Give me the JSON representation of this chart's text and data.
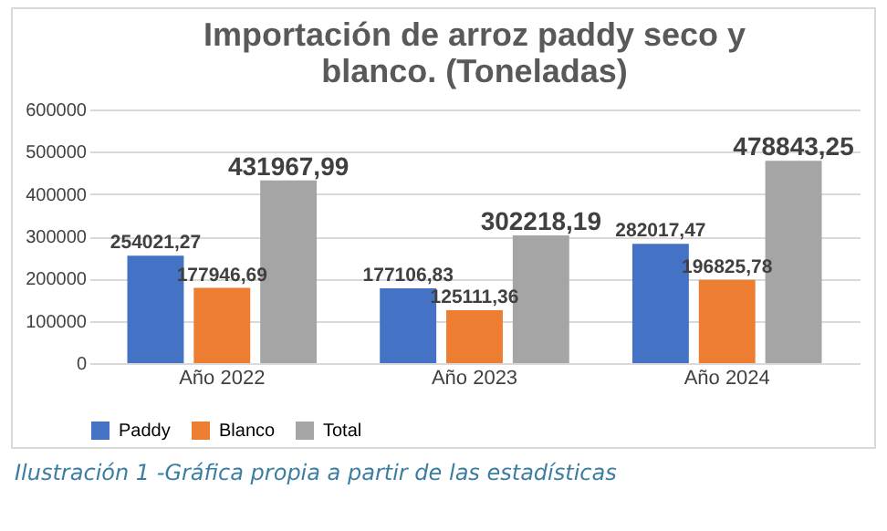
{
  "chart_data": {
    "type": "bar",
    "title": "Importación de arroz paddy seco y blanco. (Toneladas)",
    "categories": [
      "Año 2022",
      "Año 2023",
      "Año 2024"
    ],
    "series": [
      {
        "name": "Paddy",
        "color": "#4472c4",
        "values": [
          254021.27,
          177106.83,
          282017.47
        ],
        "value_labels": [
          "254021,27",
          "177106,83",
          "282017,47"
        ]
      },
      {
        "name": "Blanco",
        "color": "#ed7d31",
        "values": [
          177946.69,
          125111.36,
          196825.78
        ],
        "value_labels": [
          "177946,69",
          "125111,36",
          "196825,78"
        ]
      },
      {
        "name": "Total",
        "color": "#a5a5a5",
        "values": [
          431967.99,
          302218.19,
          478843.25
        ],
        "value_labels": [
          "431967,99",
          "302218,19",
          "478843,25"
        ]
      }
    ],
    "ylim": [
      0,
      600000
    ],
    "yticks": [
      0,
      100000,
      200000,
      300000,
      400000,
      500000,
      600000
    ],
    "grid": "y",
    "legend": "bottom",
    "annotations": [
      "Ilustración 1 -Gráfica propia a partir de las estadísticas"
    ]
  }
}
